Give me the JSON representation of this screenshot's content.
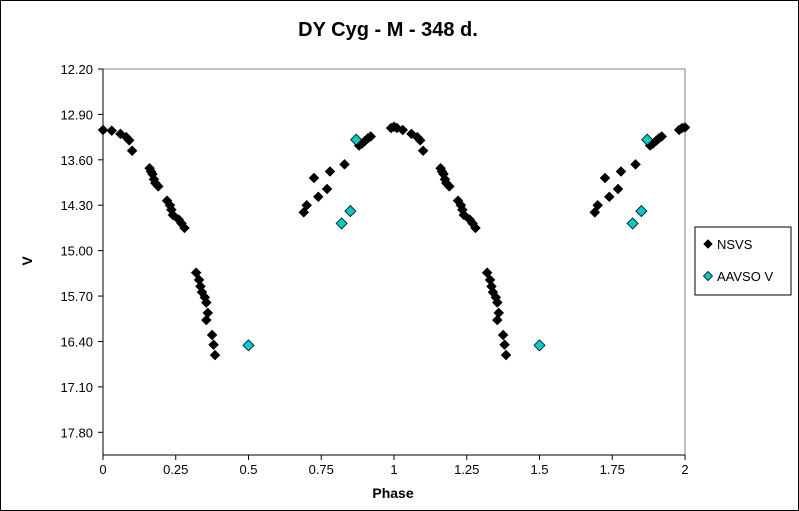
{
  "chart_data": {
    "type": "scatter",
    "title": "DY Cyg - M - 348 d.",
    "xlabel": "Phase",
    "ylabel": "V",
    "xlim": [
      0,
      2
    ],
    "ylim": [
      12.2,
      18.15
    ],
    "y_inverted": true,
    "xticks": [
      "0",
      "0.25",
      "0.5",
      "0.75",
      "1",
      "1.25",
      "1.5",
      "1.75",
      "2"
    ],
    "yticks": [
      "12.20",
      "12.90",
      "13.60",
      "14.30",
      "15.00",
      "15.70",
      "16.40",
      "17.10",
      "17.80"
    ],
    "grid": false,
    "legend_position": "right",
    "series": [
      {
        "name": "NSVS",
        "color": "#000000",
        "marker": "diamond",
        "points": [
          [
            0.0,
            13.14
          ],
          [
            0.03,
            13.15
          ],
          [
            0.06,
            13.2
          ],
          [
            0.08,
            13.25
          ],
          [
            0.09,
            13.3
          ],
          [
            0.1,
            13.46
          ],
          [
            0.16,
            13.73
          ],
          [
            0.165,
            13.78
          ],
          [
            0.17,
            13.82
          ],
          [
            0.175,
            13.9
          ],
          [
            0.18,
            13.96
          ],
          [
            0.19,
            14.01
          ],
          [
            0.22,
            14.23
          ],
          [
            0.23,
            14.3
          ],
          [
            0.235,
            14.37
          ],
          [
            0.24,
            14.45
          ],
          [
            0.26,
            14.52
          ],
          [
            0.27,
            14.58
          ],
          [
            0.28,
            14.65
          ],
          [
            0.32,
            15.34
          ],
          [
            0.33,
            15.45
          ],
          [
            0.335,
            15.55
          ],
          [
            0.34,
            15.64
          ],
          [
            0.35,
            15.72
          ],
          [
            0.355,
            15.8
          ],
          [
            0.36,
            15.96
          ],
          [
            0.355,
            16.07
          ],
          [
            0.375,
            16.3
          ],
          [
            0.38,
            16.45
          ],
          [
            0.385,
            16.61
          ],
          [
            0.69,
            14.41
          ],
          [
            0.7,
            14.3
          ],
          [
            0.725,
            13.88
          ],
          [
            0.74,
            14.17
          ],
          [
            0.77,
            14.05
          ],
          [
            0.78,
            13.78
          ],
          [
            0.83,
            13.67
          ],
          [
            0.88,
            13.38
          ],
          [
            0.89,
            13.35
          ],
          [
            0.9,
            13.31
          ],
          [
            0.91,
            13.27
          ],
          [
            0.92,
            13.24
          ],
          [
            0.99,
            13.11
          ],
          [
            1.0,
            13.09
          ],
          [
            1.01,
            13.11
          ],
          [
            1.03,
            13.14
          ],
          [
            1.06,
            13.2
          ],
          [
            1.08,
            13.25
          ],
          [
            1.09,
            13.3
          ],
          [
            1.1,
            13.46
          ],
          [
            1.16,
            13.73
          ],
          [
            1.165,
            13.78
          ],
          [
            1.17,
            13.82
          ],
          [
            1.175,
            13.9
          ],
          [
            1.18,
            13.96
          ],
          [
            1.19,
            14.01
          ],
          [
            1.22,
            14.23
          ],
          [
            1.23,
            14.3
          ],
          [
            1.235,
            14.37
          ],
          [
            1.24,
            14.45
          ],
          [
            1.26,
            14.52
          ],
          [
            1.27,
            14.58
          ],
          [
            1.28,
            14.65
          ],
          [
            1.32,
            15.34
          ],
          [
            1.33,
            15.45
          ],
          [
            1.335,
            15.55
          ],
          [
            1.34,
            15.64
          ],
          [
            1.35,
            15.72
          ],
          [
            1.355,
            15.8
          ],
          [
            1.36,
            15.96
          ],
          [
            1.355,
            16.07
          ],
          [
            1.375,
            16.3
          ],
          [
            1.38,
            16.45
          ],
          [
            1.385,
            16.61
          ],
          [
            1.69,
            14.41
          ],
          [
            1.7,
            14.3
          ],
          [
            1.725,
            13.88
          ],
          [
            1.74,
            14.17
          ],
          [
            1.77,
            14.05
          ],
          [
            1.78,
            13.78
          ],
          [
            1.83,
            13.67
          ],
          [
            1.88,
            13.38
          ],
          [
            1.89,
            13.35
          ],
          [
            1.9,
            13.31
          ],
          [
            1.91,
            13.27
          ],
          [
            1.92,
            13.24
          ],
          [
            1.98,
            13.14
          ],
          [
            1.99,
            13.11
          ],
          [
            2.0,
            13.1
          ]
        ]
      },
      {
        "name": "AAVSO V",
        "color": "#00cccc",
        "marker": "diamond",
        "points": [
          [
            0.5,
            16.46
          ],
          [
            0.82,
            14.58
          ],
          [
            0.85,
            14.39
          ],
          [
            0.87,
            13.29
          ],
          [
            1.5,
            16.46
          ],
          [
            1.82,
            14.58
          ],
          [
            1.85,
            14.39
          ],
          [
            1.87,
            13.29
          ]
        ]
      }
    ]
  }
}
